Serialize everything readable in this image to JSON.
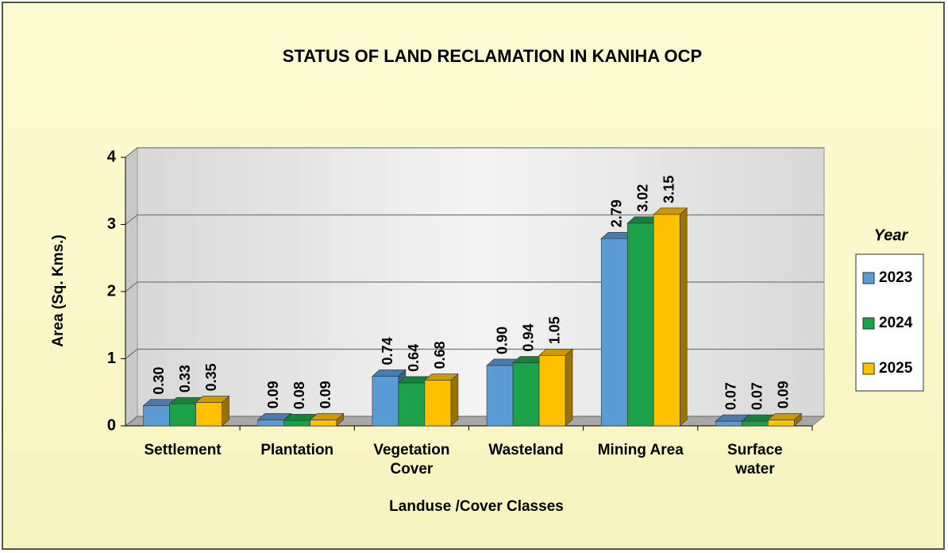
{
  "chart_data": {
    "type": "bar3d",
    "title": "STATUS OF LAND RECLAMATION  IN KANIHA OCP",
    "x_label": "Landuse /Cover Classes",
    "y_label": "Area (Sq. Kms.)",
    "legend_title": "Year",
    "categories": [
      "Settlement",
      "Plantation",
      "Vegetation Cover",
      "Wasteland",
      "Mining Area",
      "Surface water"
    ],
    "series": [
      {
        "name": "2023",
        "color": "#5b9bd5",
        "values": [
          0.3,
          0.09,
          0.74,
          0.9,
          2.79,
          0.07
        ],
        "value_labels": [
          "0.30",
          "0.09",
          "0.74",
          "0.90",
          "2.79",
          "0.07"
        ]
      },
      {
        "name": "2024",
        "color": "#1aa14a",
        "values": [
          0.33,
          0.08,
          0.64,
          0.94,
          3.02,
          0.07
        ],
        "value_labels": [
          "0.33",
          "0.08",
          "0.64",
          "0.94",
          "3.02",
          "0.07"
        ]
      },
      {
        "name": "2025",
        "color": "#ffc000",
        "values": [
          0.35,
          0.09,
          0.68,
          1.05,
          3.15,
          0.09
        ],
        "value_labels": [
          "0.35",
          "0.09",
          "0.68",
          "1.05",
          "3.15",
          "0.09"
        ]
      }
    ],
    "ylim": [
      0,
      4
    ],
    "yticks": [
      0,
      1,
      2,
      3,
      4
    ],
    "grid": true,
    "legend": "right"
  }
}
